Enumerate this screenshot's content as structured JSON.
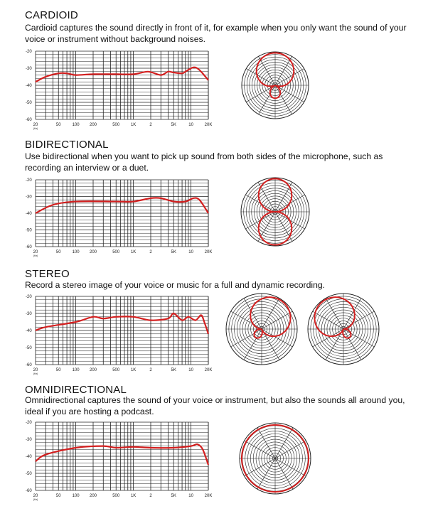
{
  "sections": [
    {
      "title": "CARDIOID",
      "description": "Cardioid captures the sound directly in front of it, for example when you only want the sound of your voice or instrument without background noises."
    },
    {
      "title": "BIDIRECTIONAL",
      "description": "Use bidirectional when you want to pick up sound from both sides of the microphone, such as recording an interview or a duet."
    },
    {
      "title": "STEREO",
      "description": "Record a stereo image of your voice or music for a full and dynamic recording."
    },
    {
      "title": "OMNIDIRECTIONAL",
      "description": "Omnidirectional captures the sound of your voice or instrument, but also the sounds all around you, ideal if you are hosting a podcast."
    }
  ],
  "colors": {
    "curve": "#d42020",
    "grid": "#222222"
  },
  "chart_data": [
    {
      "type": "line",
      "title": "CARDIOID",
      "xscale": "log",
      "xlim": [
        20,
        20000
      ],
      "ylim": [
        -60,
        -20
      ],
      "yticks": [
        "-20",
        "-30",
        "-40",
        "-50",
        "-60"
      ],
      "xticks": [
        "20",
        "50",
        "100",
        "200",
        "500",
        "1K",
        "2",
        "5K",
        "10",
        "20K"
      ],
      "xunit": "(Hz)",
      "x": [
        20,
        30,
        50,
        70,
        100,
        200,
        500,
        1000,
        1800,
        3000,
        4000,
        5000,
        7000,
        8000,
        11000,
        14000,
        20000
      ],
      "y": [
        -38,
        -35,
        -33,
        -33,
        -34,
        -33.5,
        -33.5,
        -33.5,
        -32,
        -34,
        -32,
        -32.5,
        -33,
        -32,
        -29.5,
        -31,
        -37
      ],
      "polar": [
        "cardioid"
      ]
    },
    {
      "type": "line",
      "title": "BIDIRECTIONAL",
      "xscale": "log",
      "xlim": [
        20,
        20000
      ],
      "ylim": [
        -60,
        -20
      ],
      "yticks": [
        "-20",
        "-30",
        "-40",
        "-50",
        "-60"
      ],
      "xticks": [
        "20",
        "50",
        "100",
        "200",
        "500",
        "1K",
        "2",
        "5K",
        "10",
        "20K"
      ],
      "xunit": "(Hz)",
      "x": [
        20,
        40,
        100,
        500,
        1000,
        2000,
        3000,
        5000,
        8000,
        11000,
        14000,
        20000
      ],
      "y": [
        -40,
        -35,
        -33,
        -33,
        -33,
        -31,
        -31,
        -33,
        -33,
        -31,
        -32,
        -40
      ],
      "polar": [
        "figure8"
      ]
    },
    {
      "type": "line",
      "title": "STEREO",
      "xscale": "log",
      "xlim": [
        20,
        20000
      ],
      "ylim": [
        -60,
        -20
      ],
      "yticks": [
        "-20",
        "-30",
        "-40",
        "-50",
        "-60"
      ],
      "xticks": [
        "20",
        "50",
        "100",
        "200",
        "500",
        "1K",
        "2",
        "5K",
        "10",
        "20K"
      ],
      "xunit": "(Hz)",
      "x": [
        20,
        30,
        100,
        200,
        300,
        500,
        1000,
        2000,
        4000,
        5000,
        7000,
        9000,
        12000,
        15000,
        17000,
        20000
      ],
      "y": [
        -40,
        -38,
        -35,
        -32,
        -33,
        -32,
        -32,
        -34,
        -33,
        -30,
        -34,
        -32,
        -34,
        -31,
        -35,
        -42
      ],
      "polar": [
        "stereo-left",
        "stereo-right"
      ]
    },
    {
      "type": "line",
      "title": "OMNIDIRECTIONAL",
      "xscale": "log",
      "xlim": [
        20,
        20000
      ],
      "ylim": [
        -60,
        -20
      ],
      "yticks": [
        "-20",
        "-30",
        "-40",
        "-50",
        "-60"
      ],
      "xticks": [
        "20",
        "50",
        "100",
        "200",
        "500",
        "1K",
        "2",
        "5K",
        "10",
        "20K"
      ],
      "xunit": "(Hz)",
      "x": [
        20,
        30,
        100,
        300,
        500,
        1000,
        2000,
        5000,
        10000,
        13000,
        16000,
        20000
      ],
      "y": [
        -43,
        -39,
        -35,
        -34,
        -35,
        -34.5,
        -35,
        -35,
        -34,
        -33,
        -36,
        -45
      ],
      "polar": [
        "omni"
      ]
    }
  ]
}
